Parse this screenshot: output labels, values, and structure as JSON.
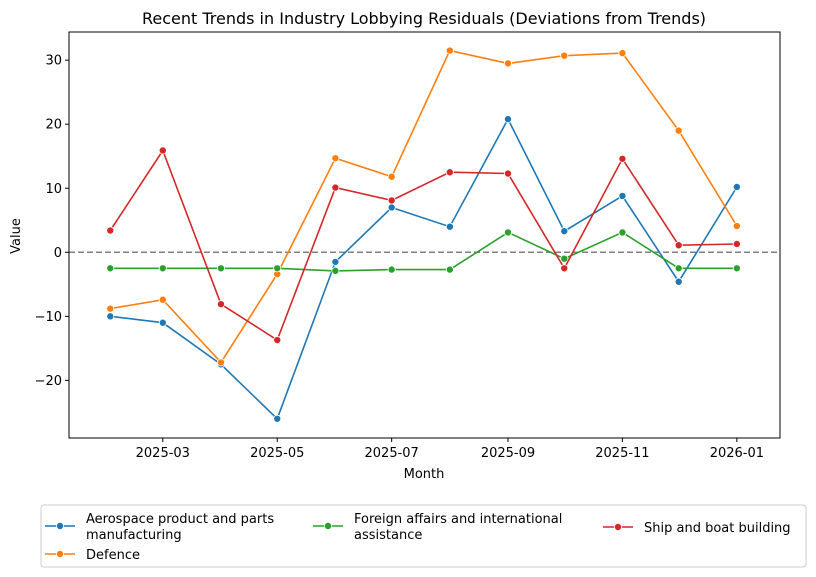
{
  "chart_data": {
    "type": "line",
    "title": "Recent Trends in Industry Lobbying Residuals (Deviations from Trends)",
    "xlabel": "Month",
    "ylabel": "Value",
    "x": [
      "2025-02",
      "2025-03",
      "2025-04",
      "2025-05",
      "2025-06",
      "2025-07",
      "2025-08",
      "2025-09",
      "2025-10",
      "2025-11",
      "2025-12",
      "2026-01"
    ],
    "xticks": [
      "2025-03",
      "2025-05",
      "2025-07",
      "2025-09",
      "2025-11",
      "2026-01"
    ],
    "yticks": [
      -20,
      -10,
      0,
      10,
      20,
      30
    ],
    "ylim": [
      -29,
      34.4
    ],
    "xlim": [
      "2025-01-10",
      "2026-01-24"
    ],
    "reference_line": {
      "y": 0,
      "style": "dashed",
      "color": "#808080"
    },
    "grid": false,
    "legend_position": "bottom",
    "series": [
      {
        "name": "Aerospace product and parts manufacturing",
        "name_lines": [
          "Aerospace product and parts",
          "manufacturing"
        ],
        "color": "#1f77b4",
        "values": [
          -10.0,
          -11.0,
          -17.5,
          -26.0,
          -1.5,
          7.0,
          4.0,
          20.8,
          3.3,
          8.8,
          -4.6,
          10.2
        ]
      },
      {
        "name": "Defence",
        "name_lines": [
          "Defence"
        ],
        "color": "#ff7f0e",
        "values": [
          -8.8,
          -7.4,
          -17.2,
          -3.4,
          14.7,
          11.8,
          31.5,
          29.5,
          30.7,
          31.1,
          19.0,
          4.1
        ]
      },
      {
        "name": "Foreign affairs and international assistance",
        "name_lines": [
          "Foreign affairs and international",
          "assistance"
        ],
        "color": "#2ca02c",
        "values": [
          -2.5,
          -2.5,
          -2.5,
          -2.5,
          -2.9,
          -2.7,
          -2.7,
          3.1,
          -1.0,
          3.1,
          -2.5,
          -2.5
        ]
      },
      {
        "name": "Ship and boat building",
        "name_lines": [
          "Ship and boat building"
        ],
        "color": "#d62728",
        "values": [
          3.4,
          15.9,
          -8.1,
          -13.7,
          10.1,
          8.1,
          12.5,
          12.3,
          -2.5,
          14.6,
          1.1,
          1.3
        ]
      }
    ]
  }
}
